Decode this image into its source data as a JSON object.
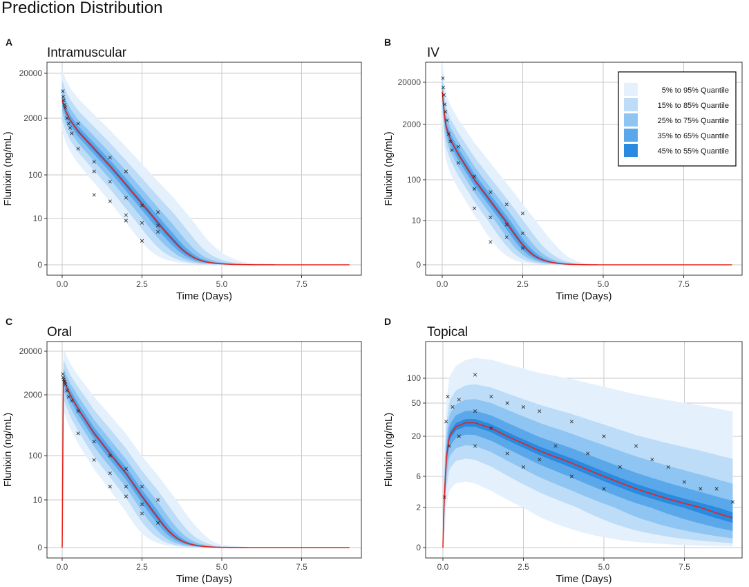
{
  "page_title": "Prediction Distribution",
  "colors": {
    "band_5_95": "#e4f1fd",
    "band_15_85": "#bcdcf7",
    "band_25_75": "#8ec5f2",
    "band_35_65": "#5aa8ea",
    "band_45_55": "#2a8ae0",
    "median_line": "#e4221b",
    "observations": "#222222",
    "grid": "#c8c8c8"
  },
  "legend": {
    "entries": [
      "5% to 95% Quantile",
      "15% to 85% Quantile",
      "25% to 75% Quantile",
      "35% to 65% Quantile",
      "45% to 55% Quantile"
    ]
  },
  "chart_data": [
    {
      "panel": "A",
      "title": "Intramuscular",
      "type": "area",
      "xlabel": "Time (Days)",
      "ylabel": "Flunixin (ng/mL)",
      "xlim": [
        -0.45,
        9.45
      ],
      "xticks": [
        0,
        2.5,
        5,
        7.5
      ],
      "xtick_labels": [
        "0.0",
        "2.5",
        "5.0",
        "7.5"
      ],
      "yscale": "pseudo-log",
      "yticks": [
        0,
        10,
        100,
        2000,
        20000
      ],
      "ytick_labels": [
        "0",
        "10",
        "100",
        "2000",
        "20000"
      ],
      "median": {
        "x": [
          0,
          0.1,
          0.25,
          0.5,
          1,
          1.5,
          2,
          2.5,
          3,
          3.5,
          4,
          4.5,
          5,
          6,
          7,
          8,
          9
        ],
        "y": [
          5000,
          3000,
          1800,
          1000,
          400,
          160,
          60,
          22,
          8,
          3,
          1,
          0.3,
          0.1,
          0.01,
          0,
          0,
          0
        ]
      },
      "band_width_factor": [
        5,
        2.8,
        1.8,
        1.3,
        1.08
      ],
      "observations": {
        "x": [
          0.02,
          0.03,
          0.05,
          0.08,
          0.1,
          0.15,
          0.2,
          0.25,
          0.3,
          0.5,
          0.5,
          1,
          1,
          1,
          1.5,
          1.5,
          1.5,
          2,
          2,
          2,
          2,
          2.5,
          2.5,
          2.5,
          3,
          3,
          3
        ],
        "y": [
          8000,
          6000,
          5000,
          4000,
          3500,
          2000,
          1500,
          1200,
          900,
          1500,
          400,
          200,
          120,
          35,
          250,
          70,
          25,
          120,
          30,
          9,
          12,
          20,
          8,
          3,
          14,
          7,
          5
        ]
      }
    },
    {
      "panel": "B",
      "title": "IV",
      "type": "area",
      "xlabel": "Time (Days)",
      "ylabel": "Flunixin (ng/mL)",
      "xlim": [
        -0.45,
        9.45
      ],
      "xticks": [
        0,
        2.5,
        5,
        7.5
      ],
      "xtick_labels": [
        "0.0",
        "2.5",
        "5.0",
        "7.5"
      ],
      "yscale": "pseudo-log",
      "yticks": [
        0,
        10,
        100,
        2000,
        20000
      ],
      "ytick_labels": [
        "0",
        "10",
        "100",
        "2000",
        "20000"
      ],
      "median": {
        "x": [
          0,
          0.1,
          0.25,
          0.5,
          1,
          1.5,
          2,
          2.5,
          3,
          3.5,
          4,
          4.5,
          5,
          6,
          7,
          8,
          9
        ],
        "y": [
          12000,
          2000,
          900,
          400,
          100,
          30,
          9,
          2.5,
          0.7,
          0.2,
          0.05,
          0.01,
          0,
          0,
          0,
          0,
          0
        ]
      },
      "band_width_factor": [
        6,
        3,
        1.9,
        1.35,
        1.1
      ],
      "observations": {
        "x": [
          0.02,
          0.03,
          0.05,
          0.08,
          0.1,
          0.15,
          0.2,
          0.25,
          0.3,
          0.5,
          0.5,
          1,
          1,
          1,
          1.5,
          1.5,
          1.5,
          2,
          2,
          2,
          2.5,
          2.5,
          2.5
        ],
        "y": [
          25000,
          15000,
          10000,
          6000,
          4000,
          2500,
          1200,
          800,
          500,
          600,
          250,
          120,
          60,
          20,
          50,
          12,
          3,
          25,
          8,
          4,
          15,
          5,
          2
        ]
      }
    },
    {
      "panel": "C",
      "title": "Oral",
      "type": "area",
      "xlabel": "Time (Days)",
      "ylabel": "Flunixin (ng/mL)",
      "xlim": [
        -0.45,
        9.45
      ],
      "xticks": [
        0,
        2.5,
        5,
        7.5
      ],
      "xtick_labels": [
        "0.0",
        "2.5",
        "5.0",
        "7.5"
      ],
      "yscale": "pseudo-log",
      "yticks": [
        0,
        10,
        100,
        2000,
        20000
      ],
      "ytick_labels": [
        "0",
        "10",
        "100",
        "2000",
        "20000"
      ],
      "median": {
        "x": [
          0,
          0.01,
          0.05,
          0.1,
          0.25,
          0.5,
          1,
          1.5,
          2,
          2.5,
          3,
          3.5,
          4,
          4.5,
          5,
          6,
          7,
          8,
          9
        ],
        "y": [
          0,
          4000,
          4500,
          3500,
          2000,
          1000,
          300,
          110,
          40,
          12,
          4,
          1.2,
          0.35,
          0.1,
          0.02,
          0,
          0,
          0,
          0
        ]
      },
      "band_width_factor": [
        5,
        2.8,
        1.8,
        1.3,
        1.08
      ],
      "observations": {
        "x": [
          0.02,
          0.03,
          0.05,
          0.08,
          0.1,
          0.15,
          0.2,
          0.3,
          0.5,
          0.5,
          1,
          1,
          1.5,
          1.5,
          1.5,
          2,
          2,
          2,
          2.5,
          2.5,
          2.5,
          3,
          3
        ],
        "y": [
          6000,
          5000,
          4500,
          4000,
          3500,
          2500,
          1800,
          1500,
          900,
          300,
          200,
          80,
          100,
          40,
          20,
          50,
          20,
          12,
          20,
          8,
          5,
          10,
          3
        ]
      }
    },
    {
      "panel": "D",
      "title": "Topical",
      "type": "area",
      "xlabel": "Time (Days)",
      "ylabel": "Flunixin (ng/mL)",
      "xlim": [
        -0.45,
        9.45
      ],
      "xticks": [
        0,
        2.5,
        5,
        7.5
      ],
      "xtick_labels": [
        "0.0",
        "2.5",
        "5.0",
        "7.5"
      ],
      "yscale": "pseudo-log",
      "yticks": [
        0,
        2,
        6,
        20,
        50,
        100
      ],
      "ytick_labels": [
        "0",
        "2",
        "6",
        "20",
        "50",
        "100"
      ],
      "median": {
        "x": [
          0,
          0.03,
          0.1,
          0.2,
          0.4,
          0.7,
          1,
          1.5,
          2,
          3,
          4,
          5,
          6,
          7,
          8,
          9
        ],
        "y": [
          0,
          2,
          10,
          20,
          26,
          29,
          29,
          25,
          20,
          13,
          9,
          6,
          4,
          2.8,
          2,
          1.4
        ]
      },
      "band_width_factor": [
        5,
        2.6,
        1.8,
        1.35,
        1.1
      ],
      "observations": {
        "x": [
          0.05,
          0.1,
          0.15,
          0.2,
          0.3,
          0.5,
          0.5,
          1,
          1,
          1,
          1.5,
          1.5,
          2,
          2,
          2.5,
          2.5,
          3,
          3,
          3.5,
          4,
          4,
          4.5,
          5,
          5,
          5.5,
          6,
          6.5,
          7,
          7.5,
          8,
          8.5,
          9
        ],
        "y": [
          3,
          30,
          60,
          15,
          45,
          55,
          20,
          110,
          40,
          15,
          60,
          25,
          50,
          12,
          45,
          8,
          40,
          10,
          15,
          30,
          6,
          12,
          20,
          4,
          8,
          15,
          10,
          8,
          5,
          4,
          4,
          2.5
        ]
      }
    }
  ]
}
